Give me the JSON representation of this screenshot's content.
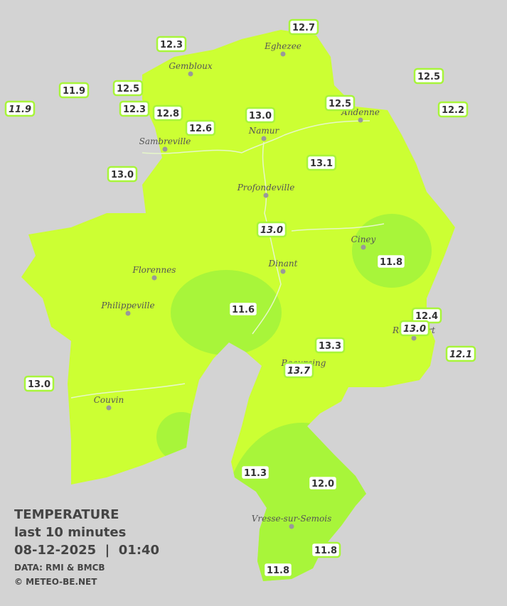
{
  "cities": [
    "Eghezee",
    "Gembloux",
    "Andenne",
    "Namur",
    "Sambreville",
    "Profondeville",
    "Ciney",
    "Dinant",
    "Florennes",
    "Philippeville",
    "Rochefort",
    "Beauraing",
    "Couvin",
    "Vresse-sur-Semois"
  ],
  "stations": [
    {
      "label": "12.7",
      "italic": false
    },
    {
      "label": "12.3",
      "italic": false
    },
    {
      "label": "11.9",
      "italic": false
    },
    {
      "label": "12.5",
      "italic": false
    },
    {
      "label": "11.9",
      "italic": true
    },
    {
      "label": "12.3",
      "italic": false
    },
    {
      "label": "12.8",
      "italic": false
    },
    {
      "label": "12.6",
      "italic": false
    },
    {
      "label": "13.0",
      "italic": false
    },
    {
      "label": "12.5",
      "italic": false
    },
    {
      "label": "12.5",
      "italic": false
    },
    {
      "label": "12.2",
      "italic": false
    },
    {
      "label": "13.0",
      "italic": false
    },
    {
      "label": "13.1",
      "italic": false
    },
    {
      "label": "13.0",
      "italic": true
    },
    {
      "label": "11.8",
      "italic": false
    },
    {
      "label": "11.6",
      "italic": false
    },
    {
      "label": "12.4",
      "italic": false
    },
    {
      "label": "13.0",
      "italic": true
    },
    {
      "label": "13.3",
      "italic": false
    },
    {
      "label": "12.1",
      "italic": true
    },
    {
      "label": "13.7",
      "italic": true
    },
    {
      "label": "13.0",
      "italic": false
    },
    {
      "label": "11.3",
      "italic": false
    },
    {
      "label": "12.0",
      "italic": false
    },
    {
      "label": "11.8",
      "italic": false
    },
    {
      "label": "11.8",
      "italic": false
    }
  ],
  "legend": {
    "title": "TEMPERATURE",
    "subtitle": "last 10 minutes",
    "datetime": "08-12-2025  |  01:40",
    "source": "DATA: RMI & BMCB",
    "copyright": "© METEO-BE.NET"
  }
}
